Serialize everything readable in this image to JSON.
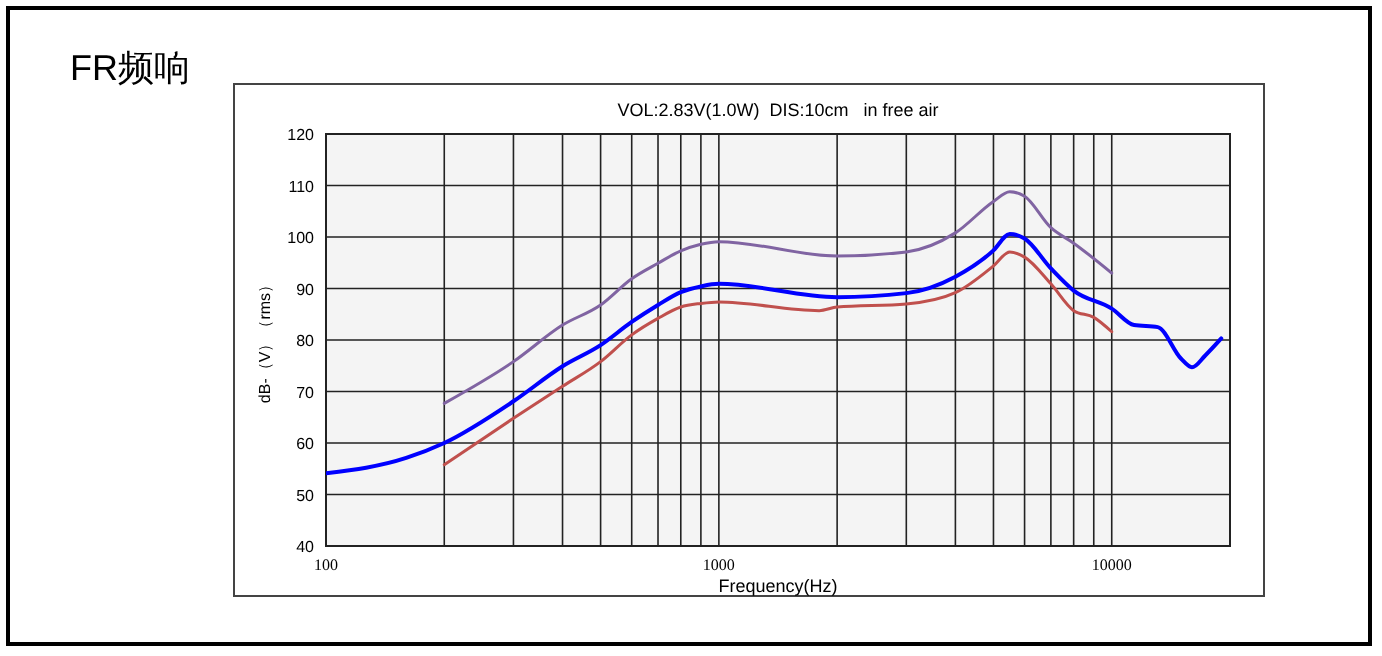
{
  "chart_data": {
    "type": "line",
    "title": "FR频响",
    "subtitle": "VOL:2.83V(1.0W)  DIS:10cm   in free air",
    "xlabel": "Frequency(Hz)",
    "ylabel": "dB-（V）（rms）",
    "log": "x",
    "grid": true,
    "marker": "none",
    "line_style": "solid",
    "xlim": [
      100,
      20000
    ],
    "ylim": [
      40,
      120
    ],
    "xticks": [
      100,
      {
        "value": 200,
        "label": null
      },
      {
        "value": 300,
        "label": null
      },
      {
        "value": 400,
        "label": null
      },
      {
        "value": 500,
        "label": null
      },
      {
        "value": 600,
        "label": null
      },
      {
        "value": 700,
        "label": null
      },
      {
        "value": 800,
        "label": null
      },
      {
        "value": 900,
        "label": null
      },
      1000,
      {
        "value": 2000,
        "label": null
      },
      {
        "value": 3000,
        "label": null
      },
      {
        "value": 4000,
        "label": null
      },
      {
        "value": 5000,
        "label": null
      },
      {
        "value": 6000,
        "label": null
      },
      {
        "value": 7000,
        "label": null
      },
      {
        "value": 8000,
        "label": null
      },
      {
        "value": 9000,
        "label": null
      },
      10000,
      {
        "value": 20000,
        "label": null
      }
    ],
    "yticks": [
      40,
      50,
      60,
      70,
      80,
      90,
      100,
      110,
      120
    ],
    "series": [
      {
        "color": "#8064a2",
        "x": [
          200,
          300,
          400,
          500,
          600,
          700,
          800,
          900,
          1000,
          2000,
          3000,
          4000,
          5000,
          5500,
          6000,
          7000,
          8000,
          10000
        ],
        "values": [
          67.7,
          75.8,
          82.9,
          86.8,
          91.9,
          94.9,
          97.3,
          98.6,
          99.1,
          96.3,
          97.1,
          100.8,
          106.9,
          108.8,
          107.9,
          101.8,
          98.8,
          93.0
        ]
      },
      {
        "color": "#0000ff",
        "x": [
          100,
          160,
          200,
          300,
          400,
          500,
          600,
          700,
          800,
          900,
          1000,
          2000,
          3000,
          4000,
          5000,
          5500,
          6000,
          7000,
          8000,
          10000,
          11400,
          13100,
          15000,
          16000,
          17300,
          19000
        ],
        "values": [
          54.1,
          57.1,
          60.0,
          68.1,
          74.9,
          79.0,
          83.5,
          86.8,
          89.3,
          90.4,
          90.9,
          88.3,
          89.1,
          92.3,
          97.4,
          100.6,
          99.7,
          93.9,
          89.6,
          86.1,
          82.9,
          82.5,
          76.4,
          74.7,
          77.0,
          80.3
        ]
      },
      {
        "color": "#c0504d",
        "x": [
          200,
          300,
          400,
          500,
          600,
          700,
          800,
          900,
          1000,
          1800,
          2000,
          3000,
          4000,
          5000,
          5500,
          6000,
          7000,
          8000,
          9000,
          10000
        ],
        "values": [
          55.8,
          64.8,
          71.0,
          75.8,
          81.0,
          84.2,
          86.4,
          87.1,
          87.4,
          85.7,
          86.4,
          87.0,
          89.2,
          94.4,
          97.1,
          96.1,
          90.9,
          85.7,
          84.4,
          81.6
        ]
      }
    ]
  }
}
